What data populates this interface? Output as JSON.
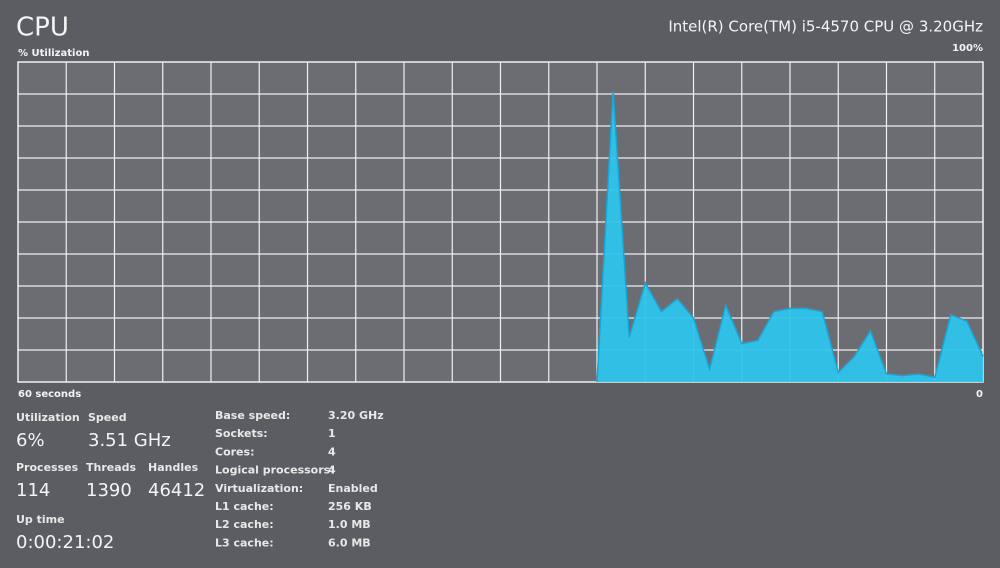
{
  "header": {
    "title": "CPU",
    "processor": "Intel(R) Core(TM) i5-4570 CPU @ 3.20GHz"
  },
  "chart_data": {
    "type": "area",
    "ylabel": "% Utilization",
    "x": [
      24,
      23,
      22,
      21,
      20,
      19,
      18,
      17,
      16,
      15,
      14,
      13,
      12,
      11,
      10,
      9,
      8,
      7,
      6,
      5,
      4,
      3,
      2,
      1,
      0
    ],
    "values": [
      0,
      91,
      14,
      31,
      22,
      26,
      20,
      4,
      24,
      12,
      13,
      22,
      23,
      23,
      22,
      3,
      8,
      16,
      2.5,
      2,
      2.5,
      1.5,
      21,
      19,
      8
    ],
    "color": "#2ec4ec",
    "xlim": [
      60,
      0
    ],
    "xticks": [
      {
        "value": 60,
        "label": "60 seconds"
      },
      0
    ],
    "ylim": [
      0,
      100
    ],
    "yticks": [
      {
        "value": 100,
        "label": "100%"
      }
    ],
    "grid": true
  },
  "stats": [
    {
      "label": "Utilization",
      "value": "6%"
    },
    {
      "label": "Speed",
      "value": "3.51 GHz"
    },
    {
      "label": "Processes",
      "value": "114"
    },
    {
      "label": "Threads",
      "value": "1390"
    },
    {
      "label": "Handles",
      "value": "46412"
    },
    {
      "label": "Up time",
      "value": "0:00:21:02"
    }
  ],
  "details": [
    {
      "label": "Base speed:",
      "value": "3.20 GHz"
    },
    {
      "label": "Sockets:",
      "value": "1"
    },
    {
      "label": "Cores:",
      "value": "4"
    },
    {
      "label": "Logical processors:",
      "value": "4"
    },
    {
      "label": "Virtualization:",
      "value": "Enabled"
    },
    {
      "label": "L1 cache:",
      "value": "256 KB"
    },
    {
      "label": "L2 cache:",
      "value": "1.0 MB"
    },
    {
      "label": "L3 cache:",
      "value": "6.0 MB"
    }
  ]
}
